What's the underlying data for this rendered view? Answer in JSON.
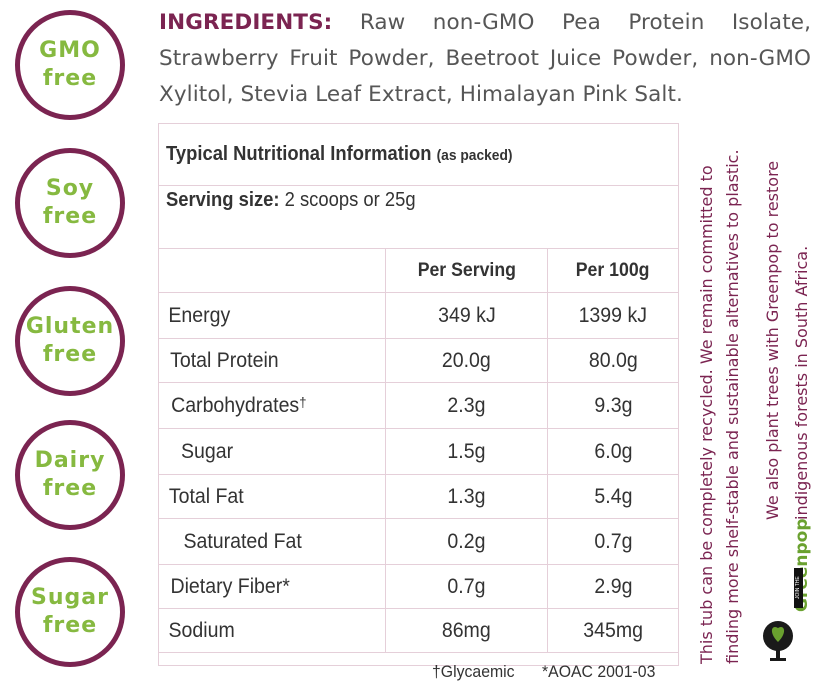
{
  "badges": [
    {
      "line1": "GMO",
      "line2": "free"
    },
    {
      "line1": "Soy",
      "line2": "free"
    },
    {
      "line1": "Gluten",
      "line2": "free"
    },
    {
      "line1": "Dairy",
      "line2": "free"
    },
    {
      "line1": "Sugar",
      "line2": "free"
    }
  ],
  "ingredients": {
    "label": "INGREDIENTS:",
    "text": "Raw non-GMO Pea Protein Isolate, Strawberry Fruit Powder, Beetroot Juice Powder, non-GMO Xylitol, Stevia Leaf Extract, Himalayan Pink Salt."
  },
  "nutrition": {
    "title": "Typical Nutritional Information",
    "title_note": "(as packed)",
    "serving_label": "Serving size:",
    "serving_value": "2 scoops or 25g",
    "columns": [
      "",
      "Per Serving",
      "Per 100g"
    ],
    "rows": [
      {
        "name": "Energy",
        "per_serving": "349 kJ",
        "per_100g": "1399 kJ"
      },
      {
        "name": "Total Protein",
        "per_serving": "20.0g",
        "per_100g": "80.0g"
      },
      {
        "name": "Carbohydrates",
        "mark": "†",
        "per_serving": "2.3g",
        "per_100g": "9.3g"
      },
      {
        "name": "Sugar",
        "per_serving": "1.5g",
        "per_100g": "6.0g"
      },
      {
        "name": "Total Fat",
        "per_serving": "1.3g",
        "per_100g": "5.4g"
      },
      {
        "name": "Saturated Fat",
        "per_serving": "0.2g",
        "per_100g": "0.7g"
      },
      {
        "name": "Dietary Fiber*",
        "per_serving": "0.7g",
        "per_100g": "2.9g"
      },
      {
        "name": "Sodium",
        "per_serving": "86mg",
        "per_100g": "345mg"
      }
    ],
    "footnote_1": "†Glycaemic",
    "footnote_2": "*AOAC 2001-03"
  },
  "side_text": {
    "line1": "This tub can be completely recycled. We remain committed to",
    "line2": "finding more shelf-stable and sustainable alternatives to plastic.",
    "line3": "We also plant trees with Greenpop to restore",
    "line4": "indigenous forests in South Africa."
  },
  "greenpop": {
    "name": "Greenpop",
    "tagline": "JOIN THE TREEVOLUTION"
  },
  "colors": {
    "brand_plum": "#7b2451",
    "badge_green": "#86b940",
    "table_border": "#e5cfd9",
    "greenpop_green": "#6aa12f"
  }
}
